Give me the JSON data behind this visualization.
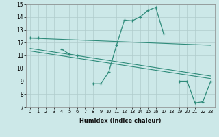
{
  "xlabel": "Humidex (Indice chaleur)",
  "x": [
    0,
    1,
    2,
    3,
    4,
    5,
    6,
    7,
    8,
    9,
    10,
    11,
    12,
    13,
    14,
    15,
    16,
    17,
    18,
    19,
    20,
    21,
    22,
    23
  ],
  "y_main": [
    12.4,
    12.4,
    null,
    null,
    11.5,
    11.1,
    11.0,
    null,
    8.8,
    8.8,
    9.7,
    11.8,
    13.75,
    13.7,
    14.0,
    14.5,
    14.75,
    12.7,
    null,
    9.0,
    9.0,
    7.3,
    7.4,
    9.0
  ],
  "trend1_x": [
    0,
    23
  ],
  "trend1_y": [
    12.35,
    11.8
  ],
  "trend2_x": [
    0,
    23
  ],
  "trend2_y": [
    11.55,
    9.4
  ],
  "trend3_x": [
    0,
    23
  ],
  "trend3_y": [
    11.35,
    9.2
  ],
  "ylim": [
    7,
    15
  ],
  "yticks": [
    7,
    8,
    9,
    10,
    11,
    12,
    13,
    14,
    15
  ],
  "xticks": [
    0,
    1,
    2,
    3,
    4,
    5,
    6,
    7,
    8,
    9,
    10,
    11,
    12,
    13,
    14,
    15,
    16,
    17,
    18,
    19,
    20,
    21,
    22,
    23
  ],
  "line_color": "#2e8b7a",
  "bg_color": "#cce8e8",
  "grid_color": "#b0cccc"
}
